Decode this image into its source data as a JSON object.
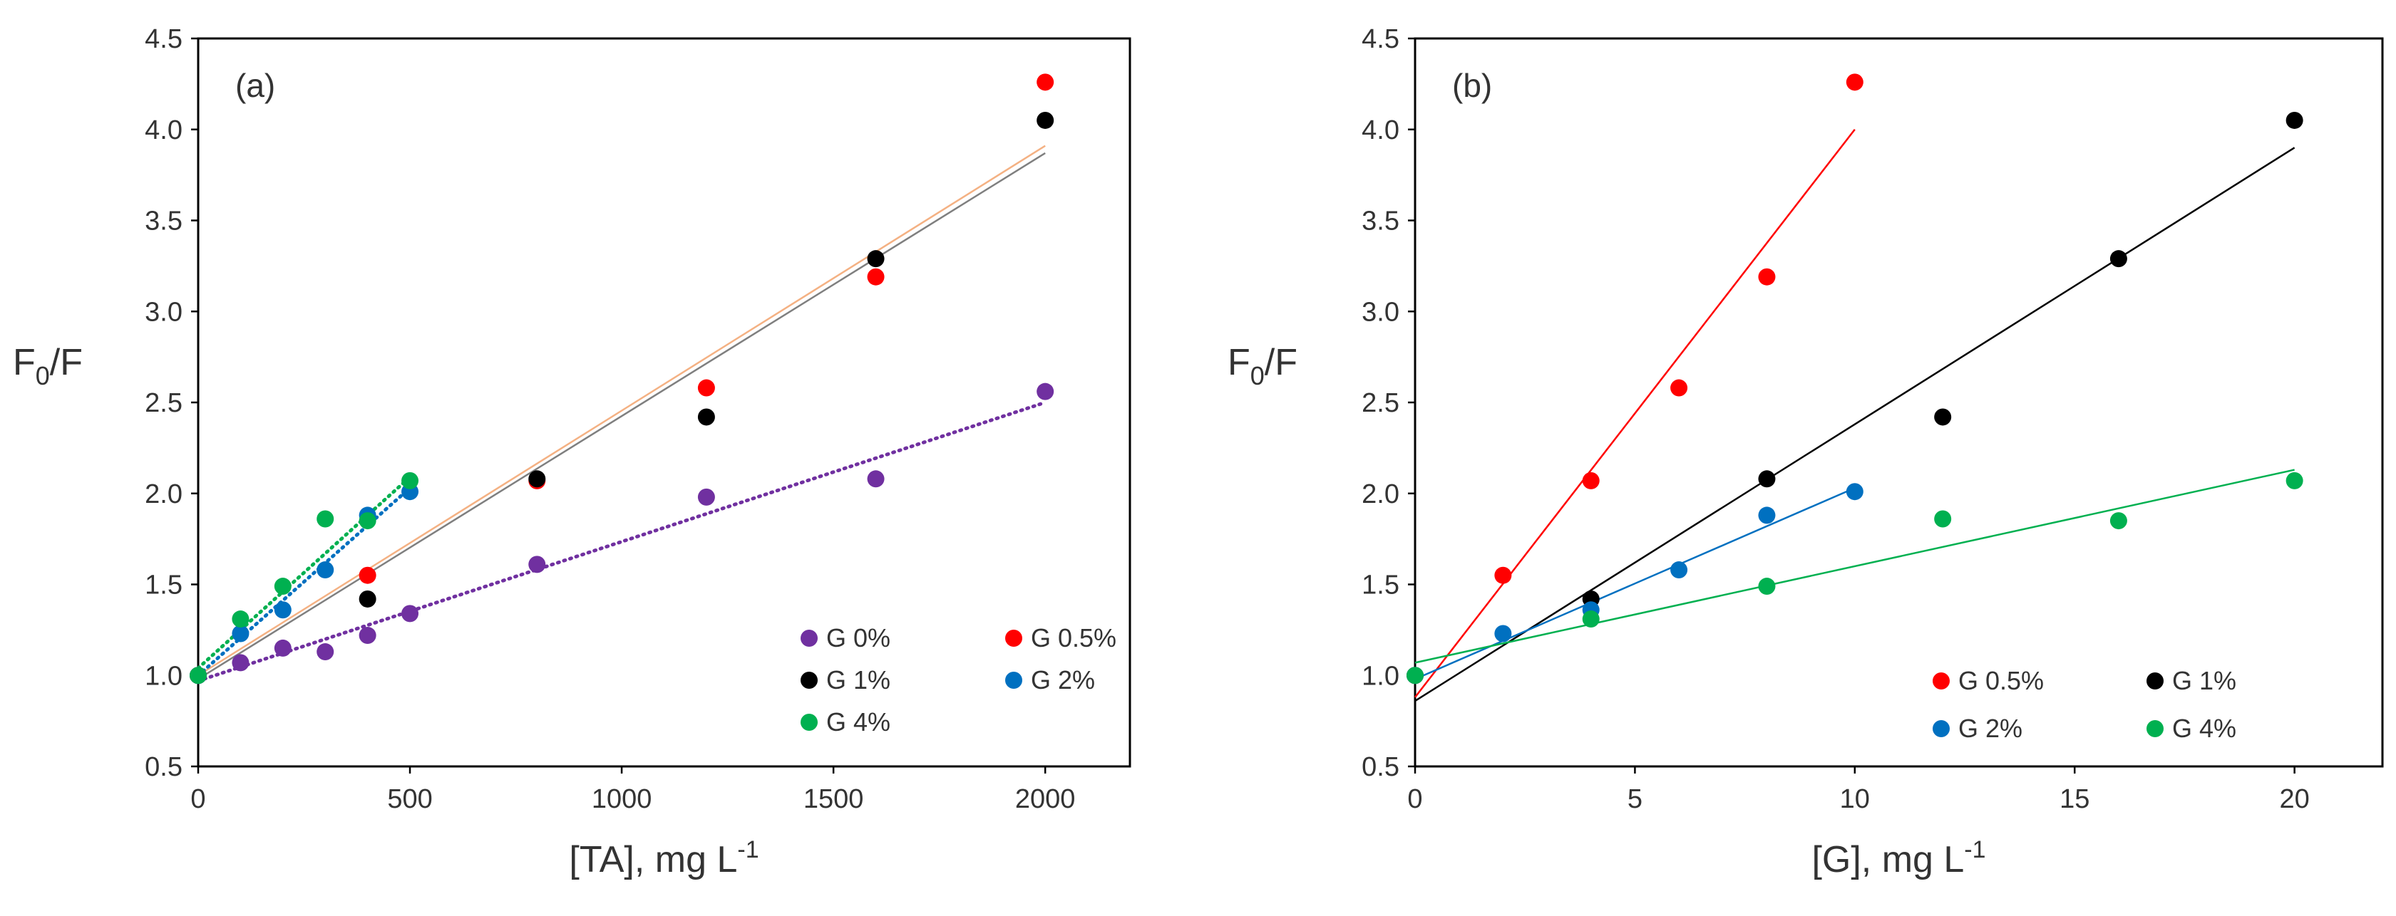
{
  "chart_data": [
    {
      "type": "scatter",
      "panel_label": "(a)",
      "ylabel_main": "F",
      "ylabel_sub": "0",
      "ylabel_tail": "/F",
      "xlabel_main": "[TA], mg L",
      "xlabel_sup": "-1",
      "xlim": [
        0,
        2200
      ],
      "ylim": [
        0.5,
        4.5
      ],
      "xticks": [
        0,
        500,
        1000,
        1500,
        2000
      ],
      "xtick_labels": [
        "0",
        "500",
        "1000",
        "1500",
        "2000"
      ],
      "yticks": [
        0.5,
        1.0,
        1.5,
        2.0,
        2.5,
        3.0,
        3.5,
        4.0,
        4.5
      ],
      "ytick_labels": [
        "0.5",
        "1.0",
        "1.5",
        "2.0",
        "2.5",
        "3.0",
        "3.5",
        "4.0",
        "4.5"
      ],
      "legend_position": "bottom-right",
      "legend": [
        {
          "label": "G 0%",
          "color": "#7030a0"
        },
        {
          "label": "G 0.5%",
          "color": "#ff0000"
        },
        {
          "label": "G 1%",
          "color": "#000000"
        },
        {
          "label": "G 2%",
          "color": "#0070c0"
        },
        {
          "label": "G 4%",
          "color": "#00b050"
        }
      ],
      "series": [
        {
          "name": "G 0%",
          "color": "#7030a0",
          "x": [
            0,
            100,
            200,
            300,
            400,
            500,
            800,
            1200,
            1600,
            2000
          ],
          "y": [
            1.0,
            1.07,
            1.15,
            1.13,
            1.22,
            1.34,
            1.61,
            1.98,
            2.08,
            2.56
          ]
        },
        {
          "name": "G 0.5%",
          "color": "#ff0000",
          "x": [
            0,
            400,
            800,
            1200,
            1600,
            2000
          ],
          "y": [
            1.0,
            1.55,
            2.07,
            2.58,
            3.19,
            4.26
          ]
        },
        {
          "name": "G 1%",
          "color": "#000000",
          "x": [
            0,
            400,
            800,
            1200,
            1600,
            2000
          ],
          "y": [
            1.0,
            1.42,
            2.08,
            2.42,
            3.29,
            4.05
          ]
        },
        {
          "name": "G 2%",
          "color": "#0070c0",
          "x": [
            0,
            100,
            200,
            300,
            400,
            500
          ],
          "y": [
            1.0,
            1.23,
            1.36,
            1.58,
            1.88,
            2.01
          ]
        },
        {
          "name": "G 4%",
          "color": "#00b050",
          "x": [
            0,
            100,
            200,
            300,
            400,
            500
          ],
          "y": [
            1.0,
            1.31,
            1.49,
            1.86,
            1.85,
            2.07
          ]
        }
      ],
      "trendlines": [
        {
          "name": "G 0% fit",
          "color": "#7030a0",
          "dash": "dotted",
          "x": [
            0,
            2000
          ],
          "y": [
            0.97,
            2.5
          ]
        },
        {
          "name": "G 0.5% fit",
          "color": "#f4b183",
          "dash": "solid",
          "x": [
            0,
            2000
          ],
          "y": [
            1.0,
            3.91
          ]
        },
        {
          "name": "G 1% fit",
          "color": "#7f7f7f",
          "dash": "solid",
          "x": [
            0,
            2000
          ],
          "y": [
            0.98,
            3.87
          ]
        },
        {
          "name": "G 2% fit",
          "color": "#0070c0",
          "dash": "dotted",
          "x": [
            0,
            500
          ],
          "y": [
            1.0,
            2.03
          ]
        },
        {
          "name": "G 4% fit",
          "color": "#00b050",
          "dash": "dotted",
          "x": [
            0,
            500
          ],
          "y": [
            1.04,
            2.09
          ]
        }
      ]
    },
    {
      "type": "scatter",
      "panel_label": "(b)",
      "ylabel_main": "F",
      "ylabel_sub": "0",
      "ylabel_tail": "/F",
      "xlabel_main": "[G], mg L",
      "xlabel_sup": "-1",
      "xlim": [
        0,
        22
      ],
      "ylim": [
        0.5,
        4.5
      ],
      "xticks": [
        0,
        5,
        10,
        15,
        20
      ],
      "xtick_labels": [
        "0",
        "5",
        "10",
        "15",
        "20"
      ],
      "yticks": [
        0.5,
        1.0,
        1.5,
        2.0,
        2.5,
        3.0,
        3.5,
        4.0,
        4.5
      ],
      "ytick_labels": [
        "0.5",
        "1.0",
        "1.5",
        "2.0",
        "2.5",
        "3.0",
        "3.5",
        "4.0",
        "4.5"
      ],
      "legend_position": "bottom-right",
      "legend": [
        {
          "label": "G 0.5%",
          "color": "#ff0000"
        },
        {
          "label": "G 1%",
          "color": "#000000"
        },
        {
          "label": "G 2%",
          "color": "#0070c0"
        },
        {
          "label": "G 4%",
          "color": "#00b050"
        }
      ],
      "series": [
        {
          "name": "G 0.5%",
          "color": "#ff0000",
          "x": [
            0,
            2,
            4,
            6,
            8,
            10
          ],
          "y": [
            1.0,
            1.55,
            2.07,
            2.58,
            3.19,
            4.26
          ]
        },
        {
          "name": "G 1%",
          "color": "#000000",
          "x": [
            0,
            4,
            8,
            12,
            16,
            20
          ],
          "y": [
            1.0,
            1.42,
            2.08,
            2.42,
            3.29,
            4.05
          ]
        },
        {
          "name": "G 2%",
          "color": "#0070c0",
          "x": [
            0,
            2,
            4,
            6,
            8,
            10
          ],
          "y": [
            1.0,
            1.23,
            1.36,
            1.58,
            1.88,
            2.01
          ]
        },
        {
          "name": "G 4%",
          "color": "#00b050",
          "x": [
            0,
            4,
            8,
            12,
            16,
            20
          ],
          "y": [
            1.0,
            1.31,
            1.49,
            1.86,
            1.85,
            2.07
          ]
        }
      ],
      "trendlines": [
        {
          "name": "G 0.5% fit",
          "color": "#ff0000",
          "dash": "solid",
          "x": [
            0,
            10
          ],
          "y": [
            0.88,
            4.0
          ]
        },
        {
          "name": "G 1% fit",
          "color": "#000000",
          "dash": "solid",
          "x": [
            0,
            20
          ],
          "y": [
            0.86,
            3.9
          ]
        },
        {
          "name": "G 2% fit",
          "color": "#0070c0",
          "dash": "solid",
          "x": [
            0,
            10
          ],
          "y": [
            0.98,
            2.03
          ]
        },
        {
          "name": "G 4% fit",
          "color": "#00b050",
          "dash": "solid",
          "x": [
            0,
            20
          ],
          "y": [
            1.07,
            2.13
          ]
        }
      ]
    }
  ]
}
